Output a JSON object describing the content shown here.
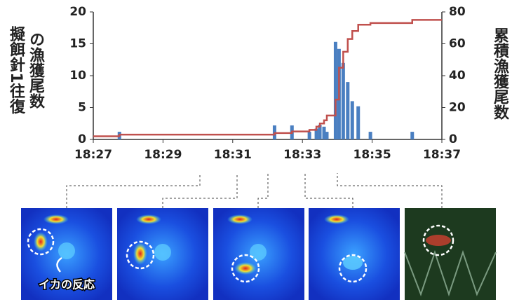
{
  "chart_data": {
    "type": "bar",
    "ylabel": [
      "擬餌針1往復",
      "の漁獲尾数"
    ],
    "y2label": "累積漁獲尾数",
    "annotation": "イカの反応",
    "xlim": [
      1107,
      1117
    ],
    "xticks": [
      {
        "value": 1107,
        "label": "18:27"
      },
      {
        "value": 1109,
        "label": "18:29"
      },
      {
        "value": 1111,
        "label": "18:31"
      },
      {
        "value": 1113,
        "label": "18:33"
      },
      {
        "value": 1115,
        "label": "18:35"
      },
      {
        "value": 1117,
        "label": "18:37"
      }
    ],
    "ylim": [
      0,
      20
    ],
    "yticks": [
      0,
      5,
      10,
      15,
      20
    ],
    "y2lim": [
      0,
      80
    ],
    "y2ticks": [
      0,
      20,
      40,
      60,
      80
    ],
    "series": [
      {
        "type": "bar",
        "color": "#4a7fc1",
        "x": [
          1107.75,
          1112.2,
          1112.7,
          1113.2,
          1113.4,
          1113.5,
          1113.62,
          1113.7,
          1113.95,
          1114.05,
          1114.17,
          1114.3,
          1114.43,
          1114.6,
          1114.95,
          1116.15
        ],
        "values": [
          1.2,
          2.2,
          2.2,
          1.2,
          1.7,
          2.3,
          2.0,
          1.2,
          15.3,
          14.2,
          12,
          9,
          6,
          5.2,
          1.2,
          1.2
        ]
      },
      {
        "type": "line",
        "color": "#c0504d",
        "axis": "y2",
        "x": [
          1107,
          1107.75,
          1112.2,
          1112.7,
          1113.2,
          1113.4,
          1113.5,
          1113.62,
          1113.7,
          1113.95,
          1114.05,
          1114.17,
          1114.3,
          1114.43,
          1114.6,
          1114.95,
          1116.15,
          1117
        ],
        "values": [
          2,
          3,
          4,
          5,
          6,
          8,
          10,
          12,
          15,
          25,
          45,
          55,
          63,
          68,
          72,
          73,
          75,
          75
        ]
      }
    ]
  }
}
